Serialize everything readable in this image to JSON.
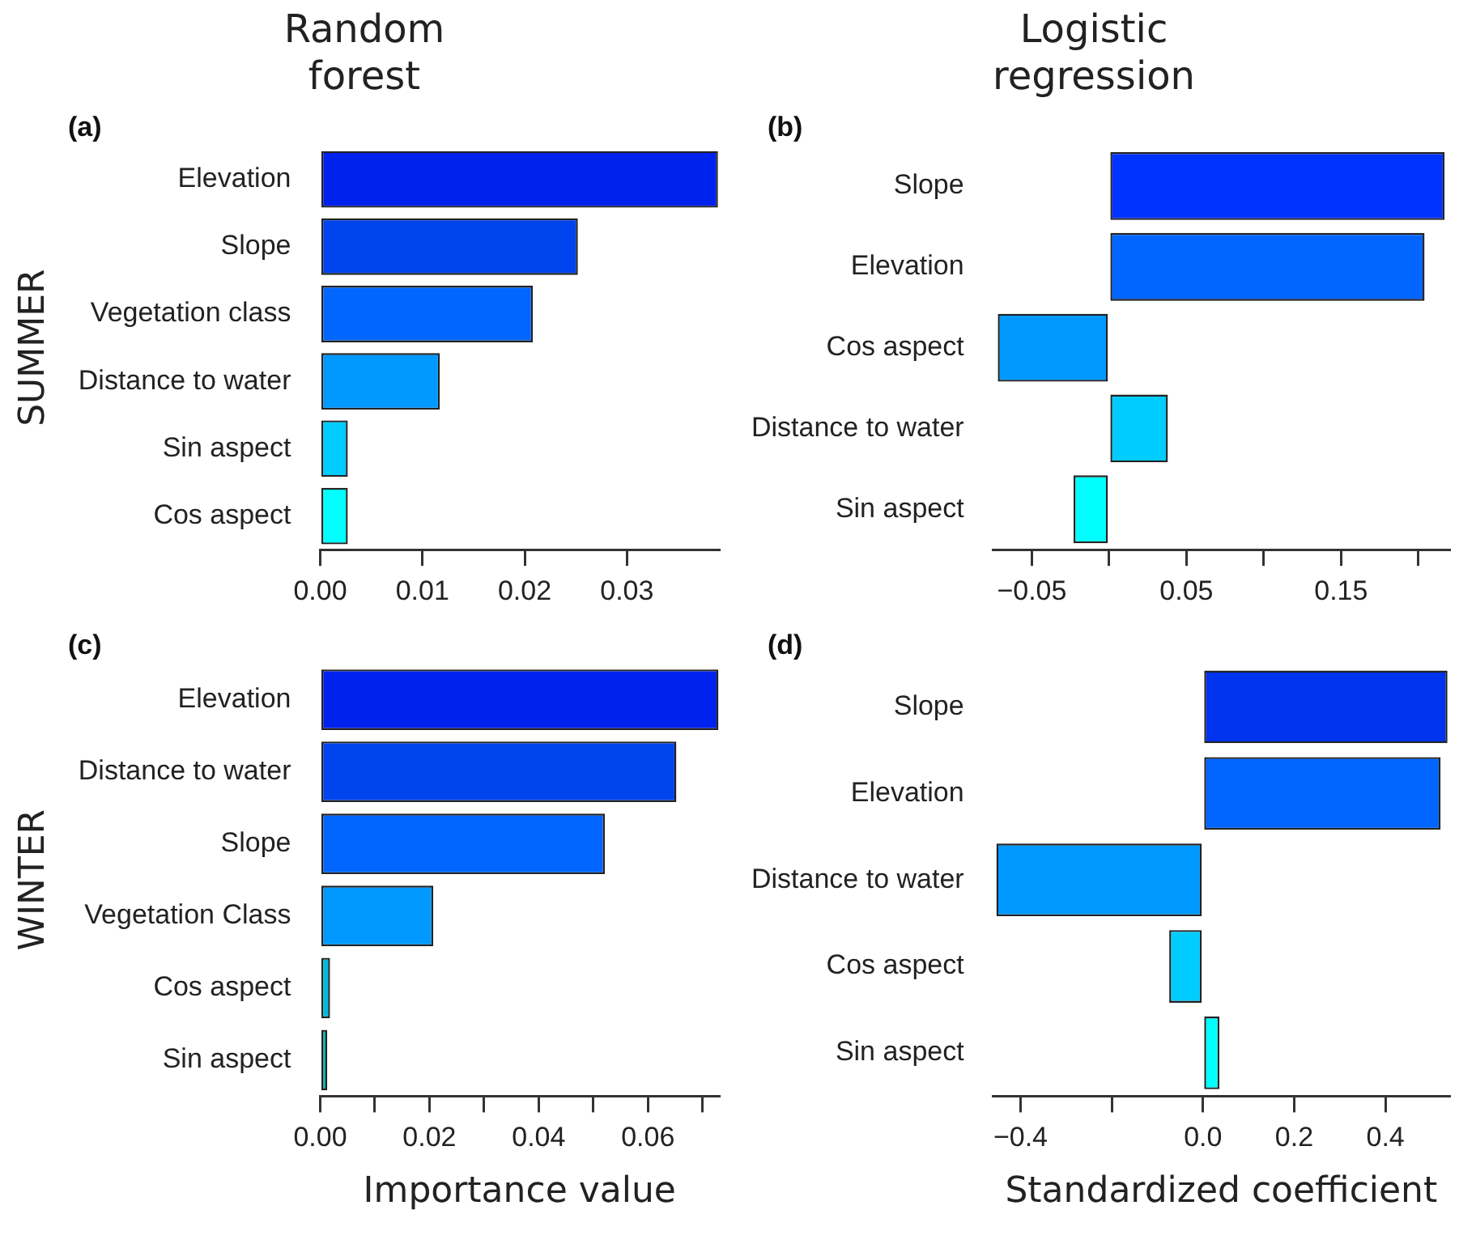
{
  "chart_data": [
    {
      "type": "bar",
      "orientation": "horizontal",
      "title": "Random forest",
      "ylabel": "SUMMER",
      "annotations": [
        "(a)"
      ],
      "categories": [
        "Elevation",
        "Slope",
        "Vegetation class",
        "Distance to water",
        "Sin aspect",
        "Cos aspect"
      ],
      "values": [
        0.0389,
        0.0252,
        0.0208,
        0.0117,
        0.0027,
        0.0027
      ],
      "colors": [
        "#0022ee",
        "#0044ee",
        "#0066ff",
        "#0099ff",
        "#00ccff",
        "#00ffff"
      ],
      "xlim": [
        0,
        0.039
      ],
      "xticks": [
        {
          "value": 0,
          "label": "0.00"
        },
        {
          "value": 0.01,
          "label": "0.01"
        },
        {
          "value": 0.02,
          "label": "0.02"
        },
        {
          "value": 0.03,
          "label": "0.03"
        }
      ]
    },
    {
      "type": "bar",
      "orientation": "horizontal",
      "title": "Logistic regression",
      "annotations": [
        "(b)"
      ],
      "categories": [
        "Slope",
        "Elevation",
        "Cos aspect",
        "Distance to water",
        "Sin aspect"
      ],
      "values": [
        0.217,
        0.204,
        -0.072,
        0.038,
        -0.023
      ],
      "colors": [
        "#0033ff",
        "#0066ff",
        "#0099ff",
        "#00ccff",
        "#00ffff"
      ],
      "xlim": [
        -0.075,
        0.22
      ],
      "xticks": [
        {
          "value": -0.05,
          "label": "−0.05"
        },
        {
          "value": 0,
          "label": null
        },
        {
          "value": 0.05,
          "label": "0.05"
        },
        {
          "value": 0.1,
          "label": null
        },
        {
          "value": 0.15,
          "label": "0.15"
        },
        {
          "value": 0.2,
          "label": null
        }
      ]
    },
    {
      "type": "bar",
      "orientation": "horizontal",
      "ylabel": "WINTER",
      "xlabel": "Importance value",
      "annotations": [
        "(c)"
      ],
      "categories": [
        "Elevation",
        "Distance to water",
        "Slope",
        "Vegetation Class",
        "Cos aspect",
        "Sin aspect"
      ],
      "values": [
        0.0729,
        0.0652,
        0.0521,
        0.0207,
        0.0018,
        0.0013
      ],
      "colors": [
        "#0022ee",
        "#0044ee",
        "#0066ff",
        "#0099ff",
        "#00bbdd",
        "#00aaaa"
      ],
      "xlim": [
        0,
        0.073
      ],
      "xticks": [
        {
          "value": 0,
          "label": "0.00"
        },
        {
          "value": 0.01,
          "label": null
        },
        {
          "value": 0.02,
          "label": "0.02"
        },
        {
          "value": 0.03,
          "label": null
        },
        {
          "value": 0.04,
          "label": "0.04"
        },
        {
          "value": 0.05,
          "label": null
        },
        {
          "value": 0.06,
          "label": "0.06"
        },
        {
          "value": 0.07,
          "label": null
        }
      ]
    },
    {
      "type": "bar",
      "orientation": "horizontal",
      "xlabel": "Standardized coefficient",
      "annotations": [
        "(d)"
      ],
      "categories": [
        "Slope",
        "Elevation",
        "Distance to water",
        "Cos aspect",
        "Sin aspect"
      ],
      "values": [
        0.536,
        0.521,
        -0.453,
        -0.074,
        0.036
      ],
      "colors": [
        "#0033ee",
        "#0066ff",
        "#0099ff",
        "#00ccff",
        "#00ffff"
      ],
      "xlim": [
        -0.46,
        0.54
      ],
      "xticks": [
        {
          "value": -0.4,
          "label": "−0.4"
        },
        {
          "value": -0.2,
          "label": null
        },
        {
          "value": 0,
          "label": "0.0"
        },
        {
          "value": 0.2,
          "label": "0.2"
        },
        {
          "value": 0.4,
          "label": "0.4"
        }
      ]
    }
  ]
}
